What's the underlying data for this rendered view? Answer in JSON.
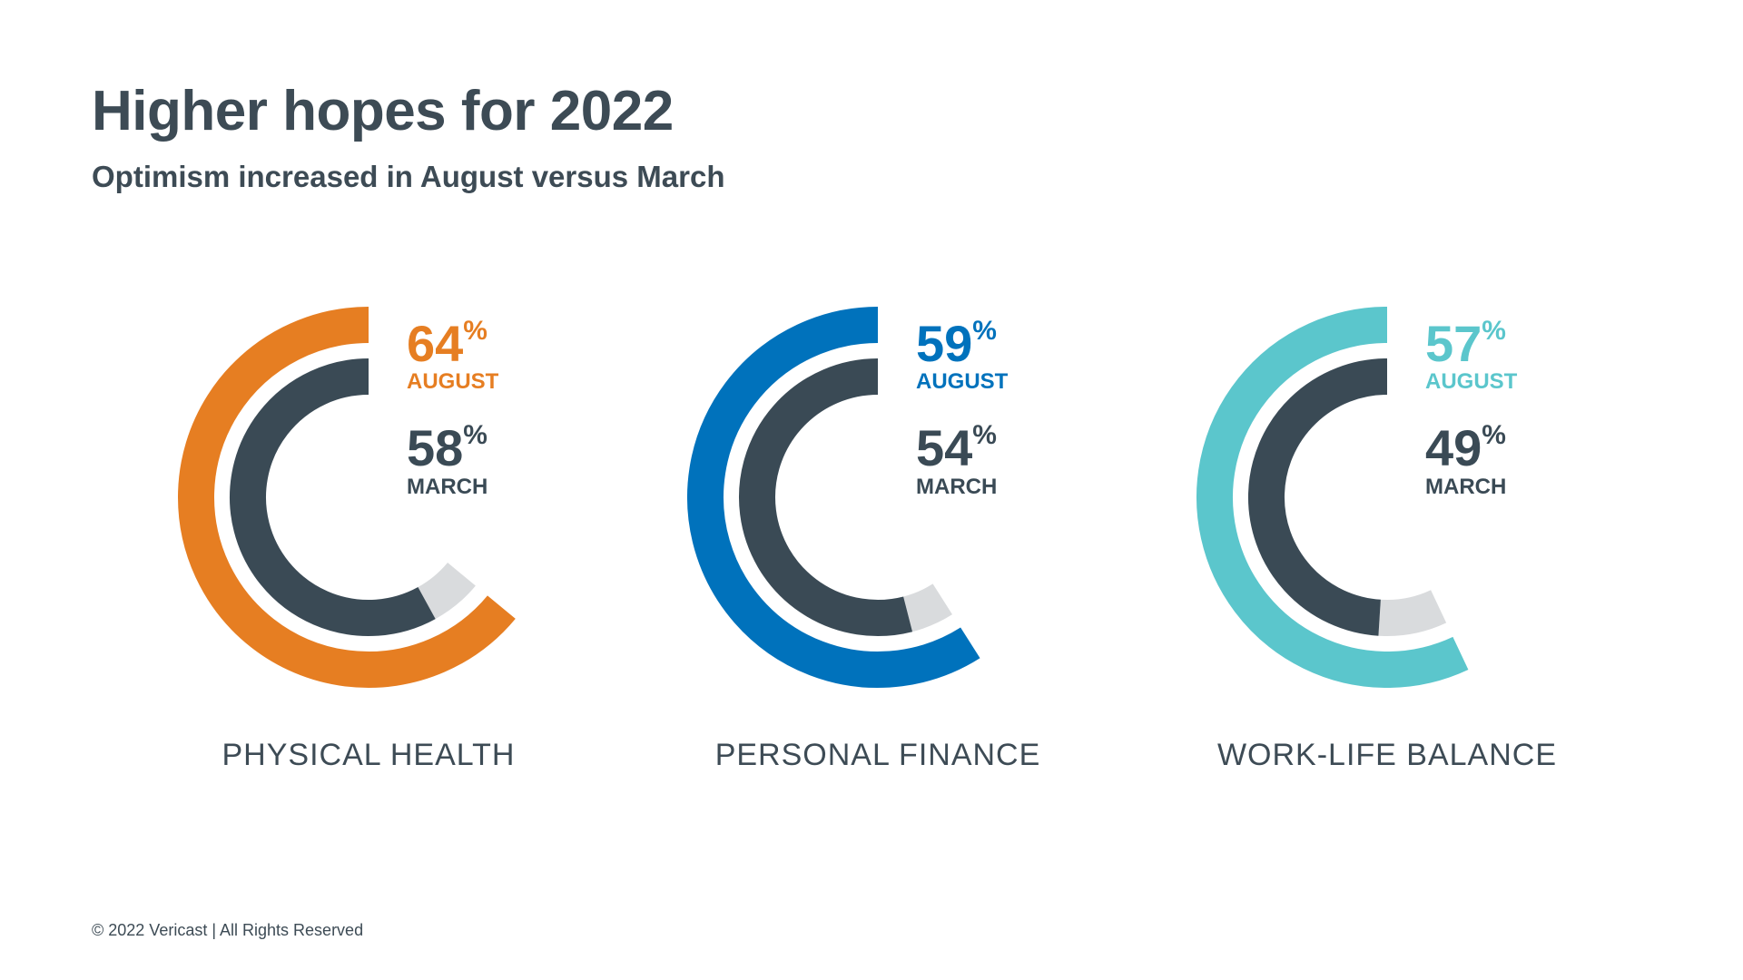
{
  "title": "Higher hopes for 2022",
  "subtitle": "Optimism increased in August versus March",
  "footer": "© 2022 Vericast | All Rights Reserved",
  "chart_data": [
    {
      "type": "radial-bar",
      "category": "PHYSICAL HEALTH",
      "color": "#e67e22",
      "series": [
        {
          "label": "AUGUST",
          "value": 64
        },
        {
          "label": "MARCH",
          "value": 58
        }
      ],
      "unit": "%"
    },
    {
      "type": "radial-bar",
      "category": "PERSONAL FINANCE",
      "color": "#0072bc",
      "series": [
        {
          "label": "AUGUST",
          "value": 59
        },
        {
          "label": "MARCH",
          "value": 54
        }
      ],
      "unit": "%"
    },
    {
      "type": "radial-bar",
      "category": "WORK-LIFE BALANCE",
      "color": "#5bc6cc",
      "series": [
        {
          "label": "AUGUST",
          "value": 57
        },
        {
          "label": "MARCH",
          "value": 49
        }
      ],
      "unit": "%"
    }
  ],
  "colors": {
    "march": "#3a4a55",
    "delta": "#d9dbdd",
    "text": "#3d4b55"
  }
}
